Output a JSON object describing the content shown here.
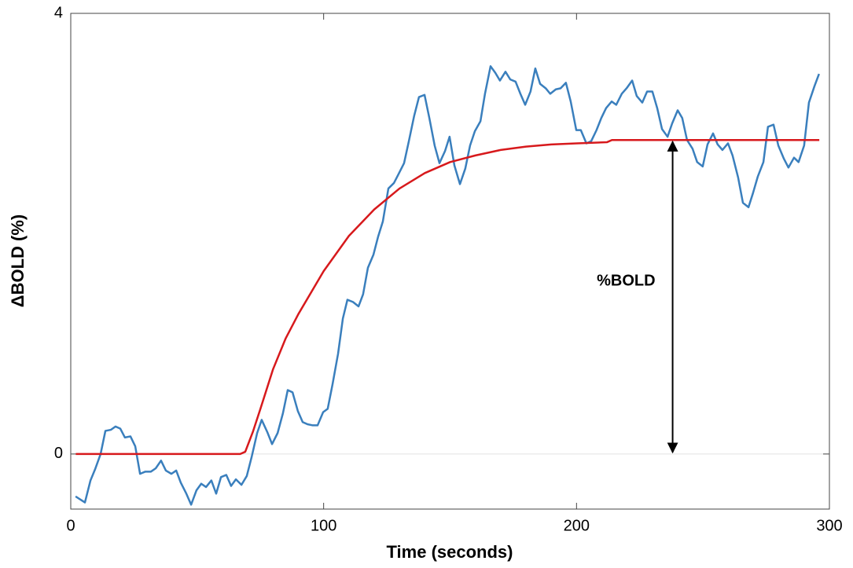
{
  "chart_data": {
    "type": "line",
    "xlabel": "Time (seconds)",
    "ylabel": "ΔBOLD (%)",
    "xlim": [
      0,
      300
    ],
    "ylim": [
      -0.5,
      4
    ],
    "xticks": [
      0,
      100,
      200,
      300
    ],
    "yticks": [
      0,
      4
    ],
    "zero_line": true,
    "grid": false,
    "series": [
      {
        "color": "#3a7fbd",
        "x": [
          1.9,
          5.6,
          7.8,
          9.6,
          11.8,
          13.7,
          15.9,
          17.7,
          19.6,
          21.4,
          23.6,
          25.5,
          27.4,
          29.5,
          31.7,
          33.6,
          35.7,
          37.6,
          39.8,
          41.7,
          43.5,
          45.7,
          47.6,
          49.7,
          51.6,
          53.5,
          55.6,
          57.5,
          59.4,
          61.5,
          63.4,
          65.3,
          67.5,
          69.6,
          71.5,
          73.7,
          75.5,
          77.7,
          79.6,
          81.8,
          83.9,
          85.8,
          87.7,
          89.8,
          91.7,
          93.6,
          95.7,
          97.6,
          99.8,
          101.6,
          103.5,
          105.7,
          107.6,
          109.4,
          111.6,
          113.8,
          115.6,
          117.5,
          119.7,
          121.5,
          123.4,
          125.6,
          127.8,
          129.6,
          131.8,
          133.7,
          135.8,
          137.7,
          139.9,
          141.8,
          143.9,
          145.8,
          148.0,
          149.8,
          151.7,
          153.9,
          156.0,
          157.9,
          159.8,
          162.0,
          163.8,
          166.0,
          167.9,
          169.7,
          171.9,
          173.8,
          175.9,
          177.8,
          179.7,
          181.8,
          183.7,
          185.6,
          187.8,
          189.6,
          191.8,
          193.7,
          195.8,
          197.7,
          199.9,
          201.7,
          203.9,
          205.8,
          207.9,
          209.8,
          211.7,
          213.9,
          215.7,
          217.9,
          219.8,
          222.0,
          223.8,
          226.0,
          227.9,
          230.0,
          231.9,
          233.8,
          236.0,
          237.8,
          240.0,
          241.8,
          243.7,
          245.9,
          247.7,
          249.9,
          251.8,
          254.0,
          255.8,
          257.7,
          259.9,
          261.7,
          263.9,
          265.8,
          268.0,
          269.8,
          271.7,
          273.9,
          275.7,
          277.9,
          279.8,
          282.0,
          283.8,
          286.0,
          287.8,
          290.0,
          291.9,
          294.1,
          295.9
        ],
        "values": [
          -0.385,
          -0.44,
          -0.24,
          -0.14,
          0,
          0.21,
          0.22,
          0.25,
          0.23,
          0.15,
          0.16,
          0.07,
          -0.18,
          -0.16,
          -0.16,
          -0.13,
          -0.06,
          -0.15,
          -0.18,
          -0.15,
          -0.26,
          -0.36,
          -0.46,
          -0.33,
          -0.27,
          -0.3,
          -0.24,
          -0.36,
          -0.21,
          -0.19,
          -0.29,
          -0.23,
          -0.28,
          -0.2,
          -0.03,
          0.19,
          0.31,
          0.2,
          0.09,
          0.19,
          0.37,
          0.58,
          0.56,
          0.39,
          0.29,
          0.27,
          0.26,
          0.26,
          0.38,
          0.41,
          0.63,
          0.91,
          1.23,
          1.4,
          1.38,
          1.34,
          1.45,
          1.69,
          1.81,
          1.97,
          2.11,
          2.41,
          2.46,
          2.54,
          2.64,
          2.84,
          3.07,
          3.24,
          3.26,
          3.05,
          2.8,
          2.64,
          2.75,
          2.88,
          2.62,
          2.45,
          2.59,
          2.8,
          2.93,
          3.02,
          3.27,
          3.52,
          3.46,
          3.39,
          3.47,
          3.4,
          3.38,
          3.27,
          3.17,
          3.29,
          3.5,
          3.36,
          3.32,
          3.27,
          3.31,
          3.32,
          3.37,
          3.2,
          2.94,
          2.94,
          2.82,
          2.84,
          2.94,
          3.05,
          3.14,
          3.2,
          3.17,
          3.27,
          3.32,
          3.39,
          3.25,
          3.19,
          3.29,
          3.29,
          3.14,
          2.95,
          2.88,
          3.0,
          3.12,
          3.05,
          2.85,
          2.77,
          2.65,
          2.61,
          2.81,
          2.91,
          2.81,
          2.76,
          2.82,
          2.71,
          2.51,
          2.28,
          2.24,
          2.37,
          2.52,
          2.65,
          2.97,
          2.99,
          2.8,
          2.68,
          2.6,
          2.69,
          2.65,
          2.8,
          3.19,
          3.34,
          3.45
        ]
      },
      {
        "color": "#d7191c",
        "x": [
          2,
          67,
          69,
          72,
          75,
          80,
          85,
          90,
          100,
          110,
          120,
          130,
          140,
          150,
          160,
          170,
          180,
          190,
          200,
          212,
          214,
          296
        ],
        "values": [
          0,
          0,
          0.02,
          0.2,
          0.41,
          0.77,
          1.05,
          1.27,
          1.66,
          1.98,
          2.22,
          2.41,
          2.55,
          2.65,
          2.71,
          2.76,
          2.79,
          2.81,
          2.82,
          2.83,
          2.85,
          2.85
        ]
      }
    ],
    "annotation": {
      "text": "%BOLD",
      "x": 238,
      "y0": 0,
      "y1": 2.85
    }
  }
}
